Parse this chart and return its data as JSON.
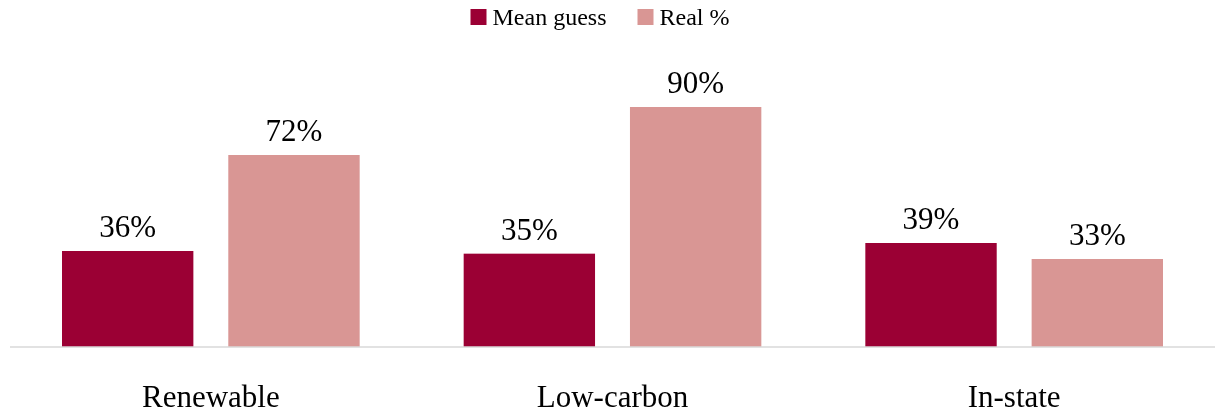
{
  "chart_data": {
    "type": "bar",
    "categories": [
      "Renewable",
      "Low-carbon",
      "In-state"
    ],
    "series": [
      {
        "name": "Mean guess",
        "color": "#9b0034",
        "values": [
          36,
          35,
          39
        ],
        "value_labels": [
          "36%",
          "35%",
          "39%"
        ]
      },
      {
        "name": "Real %",
        "color": "#d99694",
        "values": [
          72,
          90,
          33
        ],
        "value_labels": [
          "72%",
          "90%",
          "33%"
        ]
      }
    ],
    "legend": "top"
  }
}
